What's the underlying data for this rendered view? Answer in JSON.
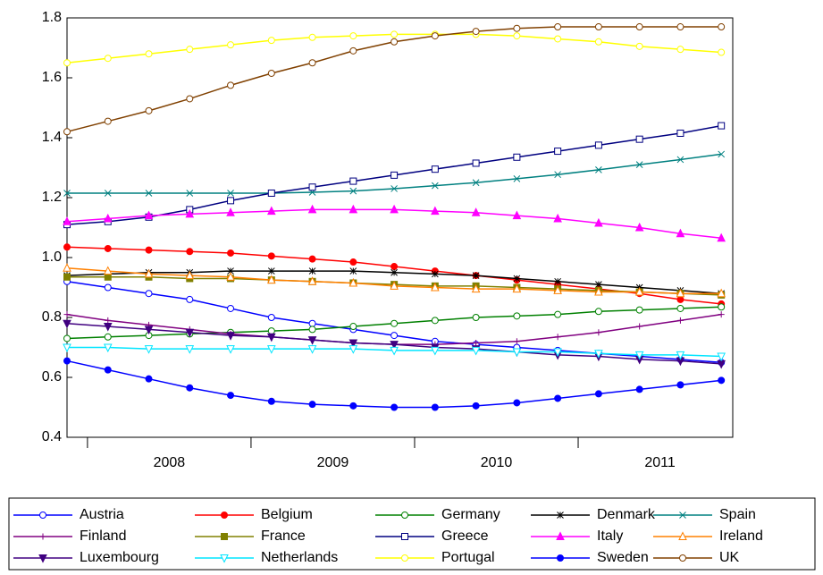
{
  "chart_data": {
    "type": "line",
    "x": [
      2007.875,
      2008.125,
      2008.375,
      2008.625,
      2008.875,
      2009.125,
      2009.375,
      2009.625,
      2009.875,
      2010.125,
      2010.375,
      2010.625,
      2010.875,
      2011.125,
      2011.375,
      2011.625,
      2011.875
    ],
    "xlim": [
      2007.875,
      2011.945
    ],
    "xticks": [
      2008,
      2009,
      2010,
      2011
    ],
    "ylim": [
      0.4,
      1.8
    ],
    "yticks": [
      0.4,
      0.6,
      0.8,
      1.0,
      1.2,
      1.4,
      1.6,
      1.8
    ],
    "series": [
      {
        "name": "Austria",
        "color": "#0000ff",
        "marker": "circle-open",
        "values": [
          0.92,
          0.9,
          0.88,
          0.86,
          0.83,
          0.8,
          0.78,
          0.76,
          0.74,
          0.72,
          0.71,
          0.7,
          0.69,
          0.68,
          0.67,
          0.66,
          0.65
        ]
      },
      {
        "name": "Belgium",
        "color": "#ff0000",
        "marker": "circle",
        "values": [
          1.035,
          1.03,
          1.025,
          1.02,
          1.015,
          1.005,
          0.995,
          0.985,
          0.97,
          0.955,
          0.94,
          0.925,
          0.91,
          0.895,
          0.88,
          0.86,
          0.845
        ]
      },
      {
        "name": "Germany",
        "color": "#008000",
        "marker": "circle-open",
        "values": [
          0.73,
          0.735,
          0.74,
          0.745,
          0.75,
          0.755,
          0.76,
          0.77,
          0.78,
          0.79,
          0.8,
          0.805,
          0.81,
          0.82,
          0.825,
          0.83,
          0.835
        ]
      },
      {
        "name": "Denmark",
        "color": "#000000",
        "marker": "star",
        "values": [
          0.94,
          0.945,
          0.95,
          0.95,
          0.955,
          0.955,
          0.955,
          0.955,
          0.95,
          0.945,
          0.94,
          0.93,
          0.92,
          0.91,
          0.9,
          0.89,
          0.88
        ]
      },
      {
        "name": "Spain",
        "color": "#008080",
        "marker": "x",
        "values": [
          1.215,
          1.215,
          1.215,
          1.215,
          1.215,
          1.215,
          1.218,
          1.222,
          1.23,
          1.24,
          1.25,
          1.263,
          1.277,
          1.293,
          1.31,
          1.327,
          1.345
        ]
      },
      {
        "name": "Finland",
        "color": "#800080",
        "marker": "plus",
        "values": [
          0.81,
          0.79,
          0.775,
          0.76,
          0.745,
          0.735,
          0.725,
          0.715,
          0.71,
          0.71,
          0.715,
          0.72,
          0.735,
          0.75,
          0.77,
          0.79,
          0.81
        ]
      },
      {
        "name": "France",
        "color": "#808000",
        "marker": "square",
        "values": [
          0.935,
          0.935,
          0.935,
          0.93,
          0.93,
          0.925,
          0.92,
          0.915,
          0.91,
          0.905,
          0.905,
          0.9,
          0.895,
          0.89,
          0.885,
          0.88,
          0.875
        ]
      },
      {
        "name": "Greece",
        "color": "#000080",
        "marker": "square-open",
        "values": [
          1.11,
          1.12,
          1.135,
          1.16,
          1.19,
          1.215,
          1.235,
          1.255,
          1.275,
          1.295,
          1.315,
          1.335,
          1.355,
          1.375,
          1.395,
          1.415,
          1.44
        ]
      },
      {
        "name": "Italy",
        "color": "#ff00ff",
        "marker": "triangle",
        "values": [
          1.12,
          1.13,
          1.14,
          1.145,
          1.15,
          1.155,
          1.16,
          1.16,
          1.16,
          1.155,
          1.15,
          1.14,
          1.13,
          1.115,
          1.1,
          1.08,
          1.065
        ]
      },
      {
        "name": "Ireland",
        "color": "#ff8000",
        "marker": "triangle-open",
        "values": [
          0.965,
          0.955,
          0.945,
          0.94,
          0.935,
          0.925,
          0.92,
          0.915,
          0.905,
          0.9,
          0.895,
          0.895,
          0.89,
          0.885,
          0.885,
          0.88,
          0.88
        ]
      },
      {
        "name": "Luxembourg",
        "color": "#400080",
        "marker": "triangle-down",
        "values": [
          0.78,
          0.77,
          0.76,
          0.75,
          0.74,
          0.735,
          0.725,
          0.715,
          0.71,
          0.7,
          0.695,
          0.685,
          0.675,
          0.67,
          0.66,
          0.655,
          0.645
        ]
      },
      {
        "name": "Netherlands",
        "color": "#00e5ff",
        "marker": "triangle-down-open",
        "values": [
          0.7,
          0.7,
          0.695,
          0.695,
          0.695,
          0.695,
          0.695,
          0.695,
          0.69,
          0.69,
          0.69,
          0.685,
          0.685,
          0.68,
          0.675,
          0.675,
          0.67
        ]
      },
      {
        "name": "Portugal",
        "color": "#ffff00",
        "marker": "circle-open",
        "values": [
          1.65,
          1.665,
          1.68,
          1.695,
          1.71,
          1.725,
          1.735,
          1.74,
          1.745,
          1.745,
          1.745,
          1.74,
          1.73,
          1.72,
          1.705,
          1.695,
          1.685
        ]
      },
      {
        "name": "Sweden",
        "color": "#0000ff",
        "marker": "circle",
        "values": [
          0.655,
          0.625,
          0.595,
          0.565,
          0.54,
          0.52,
          0.51,
          0.505,
          0.5,
          0.5,
          0.505,
          0.515,
          0.53,
          0.545,
          0.56,
          0.575,
          0.59
        ]
      },
      {
        "name": "UK",
        "color": "#804000",
        "marker": "circle-open",
        "values": [
          1.42,
          1.455,
          1.49,
          1.53,
          1.575,
          1.615,
          1.65,
          1.69,
          1.72,
          1.74,
          1.755,
          1.765,
          1.77,
          1.77,
          1.77,
          1.77,
          1.77
        ]
      }
    ]
  }
}
